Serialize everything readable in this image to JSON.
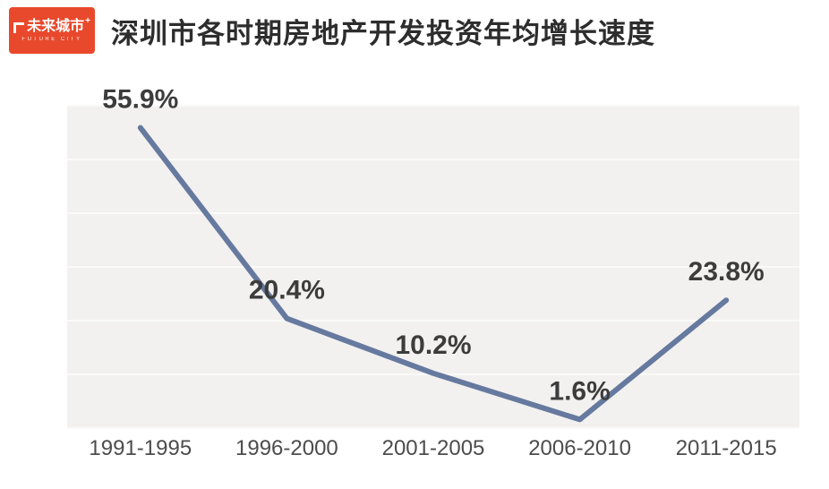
{
  "header": {
    "title": "深圳市各时期房地产开发投资年均增长速度",
    "logo": {
      "text": "未来城市",
      "plus": "+",
      "subtext": "FUTURE CITY",
      "bg_color": "#e8492c"
    }
  },
  "chart_data": {
    "type": "line",
    "title": "深圳市各时期房地产开发投资年均增长速度",
    "categories": [
      "1991-1995",
      "1996-2000",
      "2001-2005",
      "2006-2010",
      "2011-2015"
    ],
    "values": [
      55.9,
      20.4,
      10.2,
      1.6,
      23.8
    ],
    "labels": [
      "55.9%",
      "20.4%",
      "10.2%",
      "1.6%",
      "23.8%"
    ],
    "xlabel": "",
    "ylabel": "",
    "ylim": [
      0,
      60
    ],
    "grid": true,
    "legend": false,
    "line_color": "#66799f",
    "plot_bg": "#f2f1ef",
    "grid_color": "#fafaf8",
    "label_color": "#3c3c3c",
    "tick_color": "#4c4c4c"
  }
}
